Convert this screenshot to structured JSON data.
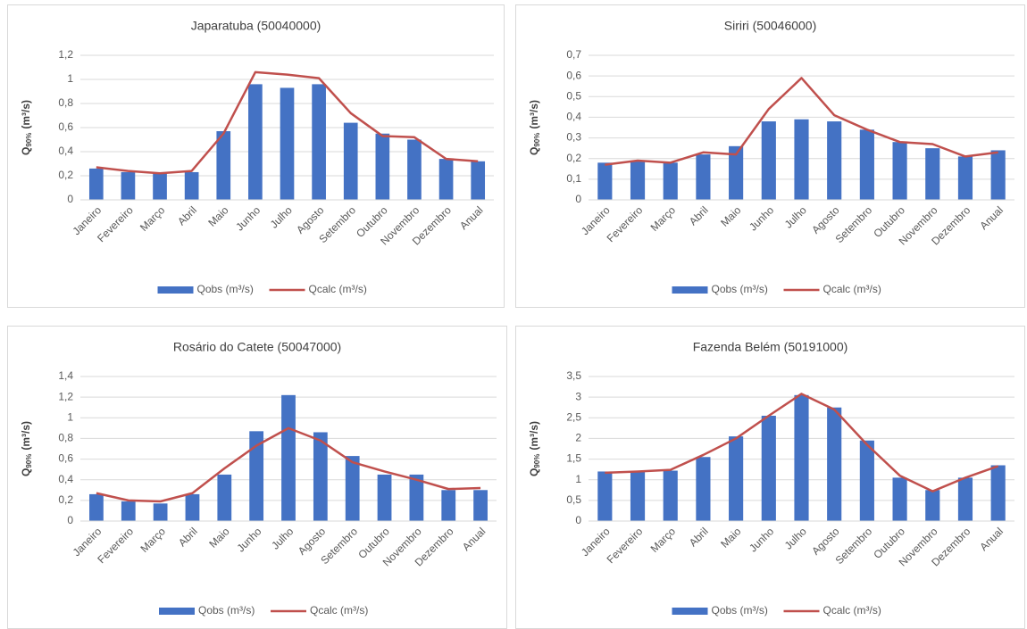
{
  "chart_data": [
    {
      "type": "combo",
      "title": "Japaratuba (50040000)",
      "y_label": [
        "Q",
        "90%",
        "(m³/s)"
      ],
      "categories": [
        "Janeiro",
        "Fevereiro",
        "Março",
        "Abril",
        "Maio",
        "Junho",
        "Julho",
        "Agosto",
        "Setembro",
        "Outubro",
        "Novembro",
        "Dezembro",
        "Anual"
      ],
      "series": [
        {
          "name": "Qobs (m³/s)",
          "type": "bar",
          "color": "#4472c4",
          "values": [
            0.26,
            0.23,
            0.22,
            0.23,
            0.57,
            0.96,
            0.93,
            0.96,
            0.64,
            0.55,
            0.5,
            0.34,
            0.32
          ]
        },
        {
          "name": "Qcalc (m³/s)",
          "type": "line",
          "color": "#c0504d",
          "values": [
            0.27,
            0.24,
            0.22,
            0.24,
            0.55,
            1.06,
            1.04,
            1.01,
            0.72,
            0.53,
            0.52,
            0.34,
            0.32
          ]
        }
      ],
      "ylim": [
        0,
        1.2
      ],
      "yticks": [
        0,
        {
          "value": 0.2,
          "label": "0,2"
        },
        {
          "value": 0.4,
          "label": "0,4"
        },
        {
          "value": 0.6,
          "label": "0,6"
        },
        {
          "value": 0.8,
          "label": "0,8"
        },
        1,
        {
          "value": 1.2,
          "label": "1,2"
        }
      ],
      "grid": true,
      "legend": "bottom"
    },
    {
      "type": "combo",
      "title": "Siriri (50046000)",
      "y_label": [
        "Q",
        "90%",
        "(m³/s)"
      ],
      "categories": [
        "Janeiro",
        "Fevereiro",
        "Março",
        "Abril",
        "Maio",
        "Junho",
        "Julho",
        "Agosto",
        "Setembro",
        "Outubro",
        "Novembro",
        "Dezembro",
        "Anual"
      ],
      "series": [
        {
          "name": "Qobs (m³/s)",
          "type": "bar",
          "color": "#4472c4",
          "values": [
            0.18,
            0.19,
            0.18,
            0.22,
            0.26,
            0.38,
            0.39,
            0.38,
            0.34,
            0.28,
            0.25,
            0.21,
            0.24
          ]
        },
        {
          "name": "Qcalc (m³/s)",
          "type": "line",
          "color": "#c0504d",
          "values": [
            0.17,
            0.19,
            0.18,
            0.23,
            0.22,
            0.44,
            0.59,
            0.41,
            0.34,
            0.28,
            0.27,
            0.21,
            0.23
          ]
        }
      ],
      "ylim": [
        0,
        0.7
      ],
      "yticks": [
        0,
        {
          "value": 0.1,
          "label": "0,1"
        },
        {
          "value": 0.2,
          "label": "0,2"
        },
        {
          "value": 0.3,
          "label": "0,3"
        },
        {
          "value": 0.4,
          "label": "0,4"
        },
        {
          "value": 0.5,
          "label": "0,5"
        },
        {
          "value": 0.6,
          "label": "0,6"
        },
        {
          "value": 0.7,
          "label": "0,7"
        }
      ],
      "grid": true,
      "legend": "bottom"
    },
    {
      "type": "combo",
      "title": "Rosário do Catete (50047000)",
      "y_label": [
        "Q",
        "90%",
        "(m³/s)"
      ],
      "categories": [
        "Janeiro",
        "Fevereiro",
        "Março",
        "Abril",
        "Maio",
        "Junho",
        "Julho",
        "Agosto",
        "Setembro",
        "Outubro",
        "Novembro",
        "Dezembro",
        "Anual"
      ],
      "series": [
        {
          "name": "Qobs (m³/s)",
          "type": "bar",
          "color": "#4472c4",
          "values": [
            0.26,
            0.19,
            0.17,
            0.26,
            0.45,
            0.87,
            1.22,
            0.86,
            0.63,
            0.45,
            0.45,
            0.3,
            0.3
          ]
        },
        {
          "name": "Qcalc (m³/s)",
          "type": "line",
          "color": "#c0504d",
          "values": [
            0.27,
            0.2,
            0.19,
            0.27,
            0.51,
            0.73,
            0.9,
            0.78,
            0.57,
            0.48,
            0.4,
            0.31,
            0.32
          ]
        }
      ],
      "ylim": [
        0,
        1.4
      ],
      "yticks": [
        0,
        {
          "value": 0.2,
          "label": "0,2"
        },
        {
          "value": 0.4,
          "label": "0,4"
        },
        {
          "value": 0.6,
          "label": "0,6"
        },
        {
          "value": 0.8,
          "label": "0,8"
        },
        1,
        {
          "value": 1.2,
          "label": "1,2"
        },
        {
          "value": 1.4,
          "label": "1,4"
        }
      ],
      "grid": true,
      "legend": "bottom"
    },
    {
      "type": "combo",
      "title": "Fazenda Belém (50191000)",
      "y_label": [
        "Q",
        "90%",
        "(m³/s)"
      ],
      "categories": [
        "Janeiro",
        "Fevereiro",
        "Março",
        "Abril",
        "Maio",
        "Junho",
        "Julho",
        "Agosto",
        "Setembro",
        "Outubro",
        "Novembro",
        "Dezembro",
        "Anual"
      ],
      "series": [
        {
          "name": "Qobs (m³/s)",
          "type": "bar",
          "color": "#4472c4",
          "values": [
            1.2,
            1.2,
            1.22,
            1.55,
            2.05,
            2.55,
            3.05,
            2.75,
            1.95,
            1.05,
            0.75,
            1.05,
            1.35
          ]
        },
        {
          "name": "Qcalc (m³/s)",
          "type": "line",
          "color": "#c0504d",
          "values": [
            1.17,
            1.2,
            1.24,
            1.6,
            2.0,
            2.55,
            3.08,
            2.7,
            1.85,
            1.1,
            0.72,
            1.05,
            1.33
          ]
        }
      ],
      "ylim": [
        0,
        3.5
      ],
      "yticks": [
        0,
        {
          "value": 0.5,
          "label": "0,5"
        },
        1,
        {
          "value": 1.5,
          "label": "1,5"
        },
        2,
        {
          "value": 2.5,
          "label": "2,5"
        },
        3,
        {
          "value": 3.5,
          "label": "3,5"
        }
      ],
      "grid": true,
      "legend": "bottom"
    }
  ]
}
